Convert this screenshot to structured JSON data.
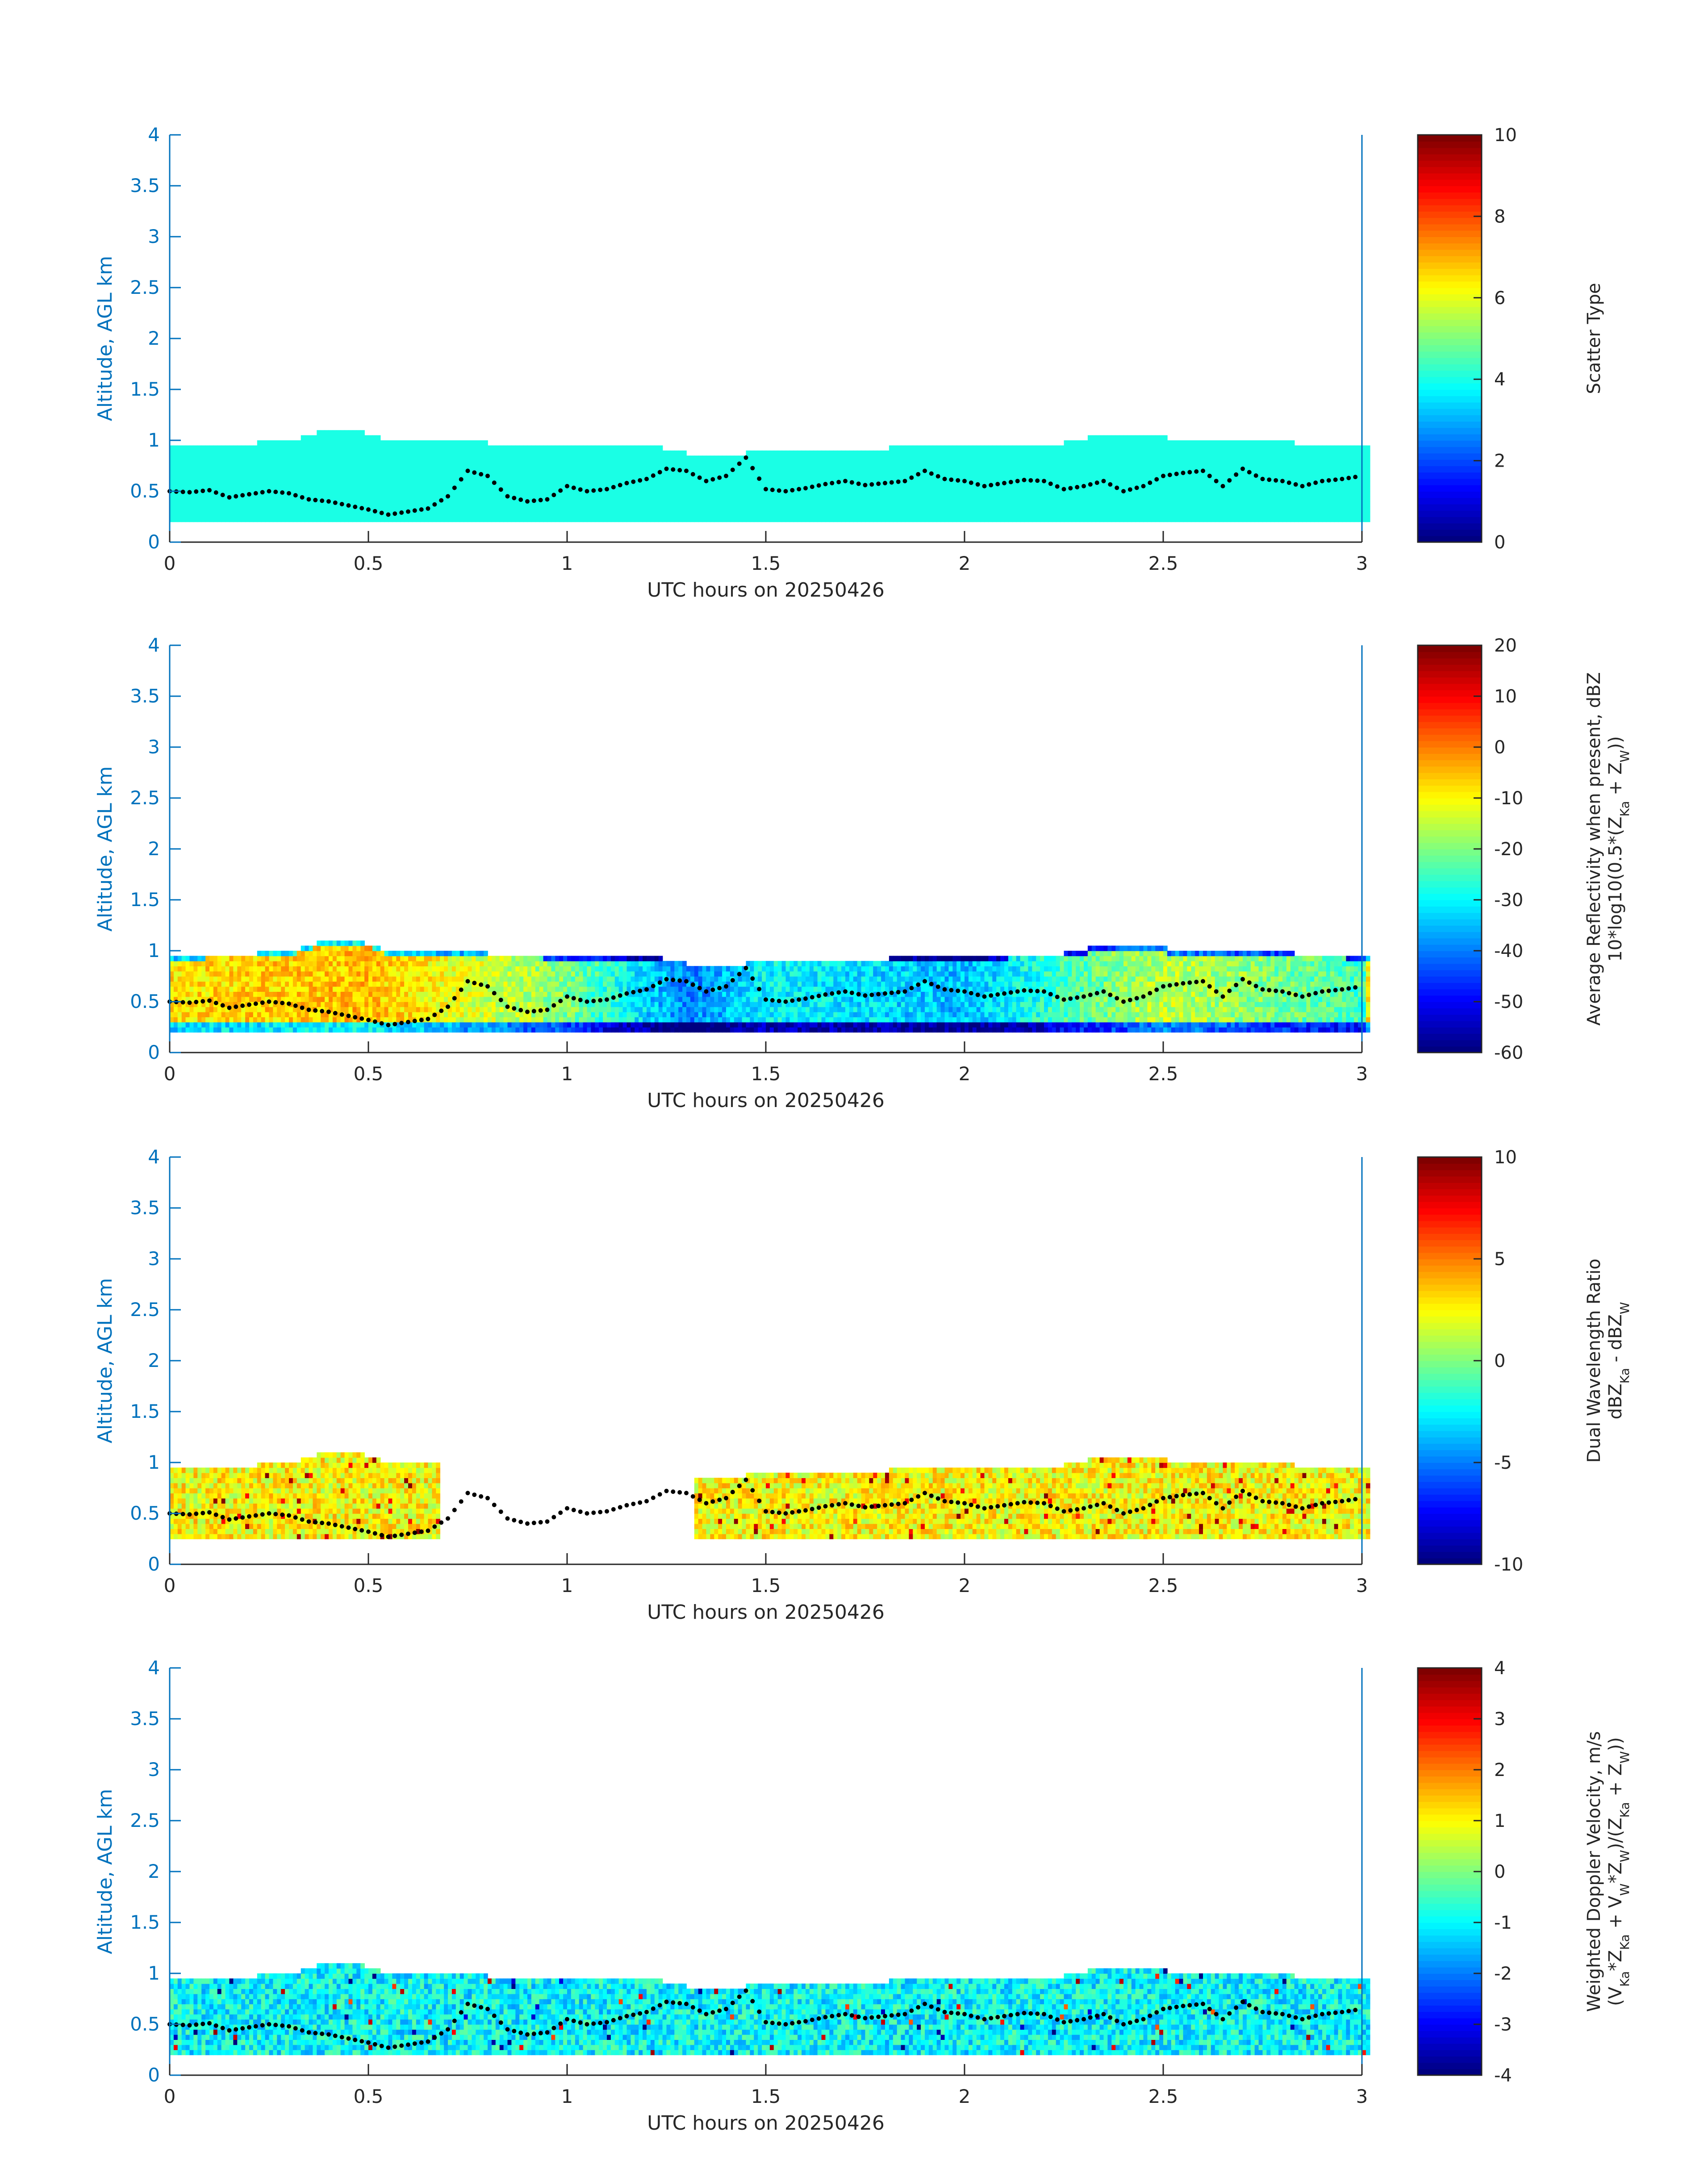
{
  "figure": {
    "colors": {
      "axis": "#0072bd",
      "text": "#262626",
      "dots": "#000000",
      "background": "#ffffff"
    },
    "colormap": "jet"
  },
  "chart_data": [
    {
      "type": "heatmap",
      "name": "scatter_type",
      "xlabel": "UTC hours on 20250426",
      "ylabel": "Altitude, AGL km",
      "xlim": [
        0,
        3
      ],
      "ylim": [
        0,
        4
      ],
      "xticks": [
        "0",
        "0.5",
        "1",
        "1.5",
        "2",
        "2.5",
        "3"
      ],
      "yticks": [
        "0",
        "0.5",
        "1",
        "1.5",
        "2",
        "2.5",
        "3",
        "3.5",
        "4"
      ],
      "colorbar": {
        "label_lines": [
          "Scatter Type"
        ],
        "range": [
          0,
          10
        ],
        "ticks": [
          "0",
          "2",
          "4",
          "6",
          "8",
          "10"
        ]
      },
      "cloud_layer": {
        "bottom_km": 0.2,
        "top_km_approx": [
          1.0,
          0.95,
          0.95,
          1.1,
          1.15,
          1.0,
          0.95,
          0.95,
          0.9,
          0.9,
          0.95,
          0.95,
          0.95,
          0.95
        ],
        "typical_value": 4
      }
    },
    {
      "type": "heatmap",
      "name": "reflectivity",
      "xlabel": "UTC hours on 20250426",
      "ylabel": "Altitude, AGL km",
      "xlim": [
        0,
        3
      ],
      "ylim": [
        0,
        4
      ],
      "xticks": [
        "0",
        "0.5",
        "1",
        "1.5",
        "2",
        "2.5",
        "3"
      ],
      "yticks": [
        "0",
        "0.5",
        "1",
        "1.5",
        "2",
        "2.5",
        "3",
        "3.5",
        "4"
      ],
      "colorbar": {
        "label_lines": [
          "Average Reflectivity when present, dBZ",
          "10*log10(0.5*(Z",
          "Ka",
          " + Z",
          "W",
          "))"
        ],
        "range": [
          -60,
          20
        ],
        "ticks": [
          "-60",
          "-50",
          "-40",
          "-30",
          "-20",
          "-10",
          "0",
          "10",
          "20"
        ]
      },
      "value_profile_by_hour": [
        [
          0,
          -8
        ],
        [
          0.5,
          -5
        ],
        [
          1,
          -20
        ],
        [
          1.3,
          -40
        ],
        [
          1.5,
          -30
        ],
        [
          2,
          -35
        ],
        [
          2.5,
          -15
        ],
        [
          3,
          -25
        ]
      ]
    },
    {
      "type": "heatmap",
      "name": "dual_wavelength_ratio",
      "xlabel": "UTC hours on 20250426",
      "ylabel": "Altitude, AGL km",
      "xlim": [
        0,
        3
      ],
      "ylim": [
        0,
        4
      ],
      "xticks": [
        "0",
        "0.5",
        "1",
        "1.5",
        "2",
        "2.5",
        "3"
      ],
      "yticks": [
        "0",
        "0.5",
        "1",
        "1.5",
        "2",
        "2.5",
        "3",
        "3.5",
        "4"
      ],
      "colorbar": {
        "label_lines": [
          "Dual Wavelength Ratio",
          "dBZ",
          "Ka",
          " - dBZ",
          "W"
        ],
        "range": [
          -10,
          10
        ],
        "ticks": [
          "-10",
          "-5",
          "0",
          "5",
          "10"
        ]
      },
      "data_gap_hours": [
        0.68,
        1.32
      ],
      "typical_value": 2.5
    },
    {
      "type": "heatmap",
      "name": "doppler_velocity",
      "xlabel": "UTC hours on 20250426",
      "ylabel": "Altitude, AGL km",
      "xlim": [
        0,
        3
      ],
      "ylim": [
        0,
        4
      ],
      "xticks": [
        "0",
        "0.5",
        "1",
        "1.5",
        "2",
        "2.5",
        "3"
      ],
      "yticks": [
        "0",
        "0.5",
        "1",
        "1.5",
        "2",
        "2.5",
        "3",
        "3.5",
        "4"
      ],
      "colorbar": {
        "label_lines": [
          "Weighted Doppler Velocity, m/s",
          "(V",
          "Ka",
          "*Z",
          "Ka",
          " + V",
          "W",
          "*Z",
          "W",
          ")/(Z",
          "Ka",
          " + Z",
          "W",
          "))"
        ],
        "range": [
          -4,
          4
        ],
        "ticks": [
          "-4",
          "-3",
          "-2",
          "-1",
          "0",
          "1",
          "2",
          "3",
          "4"
        ]
      },
      "typical_value": -1
    }
  ],
  "overlay_dots": {
    "description": "black dot series shared by all panels",
    "points": [
      [
        0,
        0.5
      ],
      [
        0.05,
        0.49
      ],
      [
        0.1,
        0.51
      ],
      [
        0.15,
        0.44
      ],
      [
        0.2,
        0.47
      ],
      [
        0.25,
        0.5
      ],
      [
        0.3,
        0.48
      ],
      [
        0.35,
        0.42
      ],
      [
        0.4,
        0.4
      ],
      [
        0.45,
        0.36
      ],
      [
        0.5,
        0.32
      ],
      [
        0.55,
        0.27
      ],
      [
        0.6,
        0.3
      ],
      [
        0.65,
        0.33
      ],
      [
        0.7,
        0.45
      ],
      [
        0.75,
        0.7
      ],
      [
        0.8,
        0.65
      ],
      [
        0.85,
        0.45
      ],
      [
        0.9,
        0.4
      ],
      [
        0.95,
        0.42
      ],
      [
        1.0,
        0.55
      ],
      [
        1.05,
        0.5
      ],
      [
        1.1,
        0.52
      ],
      [
        1.15,
        0.58
      ],
      [
        1.2,
        0.62
      ],
      [
        1.25,
        0.72
      ],
      [
        1.3,
        0.7
      ],
      [
        1.35,
        0.6
      ],
      [
        1.4,
        0.65
      ],
      [
        1.45,
        0.83
      ],
      [
        1.5,
        0.52
      ],
      [
        1.55,
        0.5
      ],
      [
        1.6,
        0.53
      ],
      [
        1.65,
        0.57
      ],
      [
        1.7,
        0.6
      ],
      [
        1.75,
        0.56
      ],
      [
        1.8,
        0.58
      ],
      [
        1.85,
        0.6
      ],
      [
        1.9,
        0.7
      ],
      [
        1.95,
        0.62
      ],
      [
        2.0,
        0.6
      ],
      [
        2.05,
        0.55
      ],
      [
        2.1,
        0.58
      ],
      [
        2.15,
        0.61
      ],
      [
        2.2,
        0.6
      ],
      [
        2.25,
        0.52
      ],
      [
        2.3,
        0.55
      ],
      [
        2.35,
        0.6
      ],
      [
        2.4,
        0.5
      ],
      [
        2.45,
        0.55
      ],
      [
        2.5,
        0.65
      ],
      [
        2.55,
        0.68
      ],
      [
        2.6,
        0.7
      ],
      [
        2.65,
        0.55
      ],
      [
        2.7,
        0.72
      ],
      [
        2.75,
        0.62
      ],
      [
        2.8,
        0.6
      ],
      [
        2.85,
        0.55
      ],
      [
        2.9,
        0.6
      ],
      [
        2.95,
        0.62
      ],
      [
        3.0,
        0.65
      ]
    ]
  }
}
